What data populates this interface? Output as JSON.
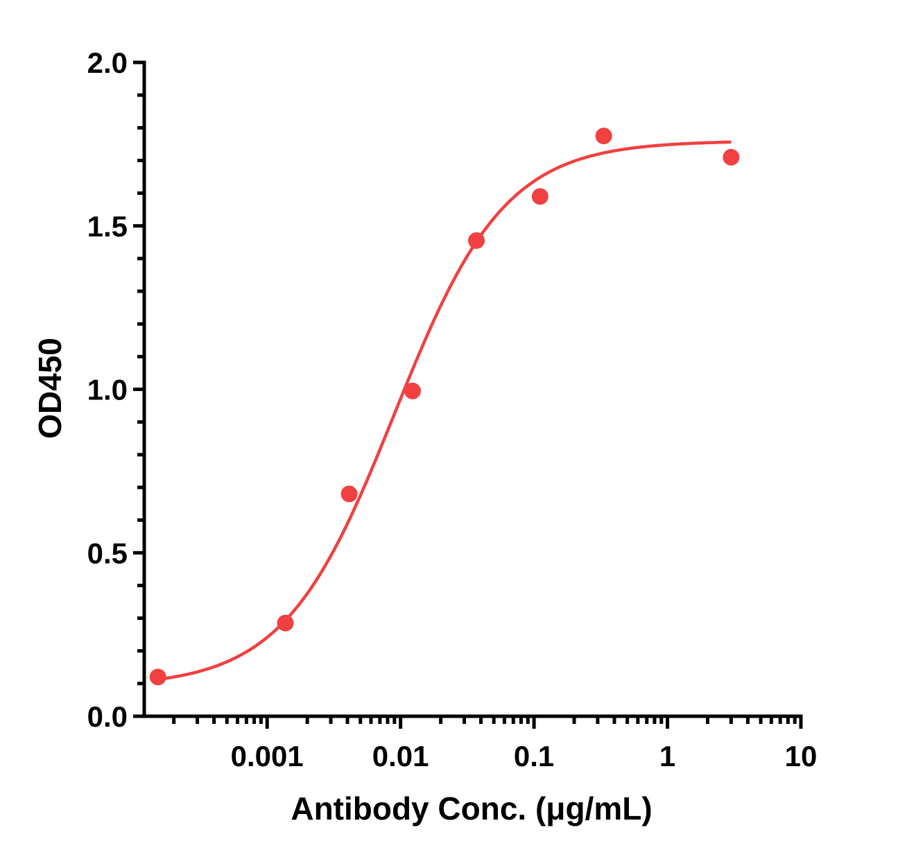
{
  "chart_data": {
    "type": "scatter",
    "xlabel": "Antibody Conc. (μg/mL)",
    "ylabel": "OD450",
    "xscale": "log",
    "xlim": [
      0.00012,
      10
    ],
    "ylim": [
      0,
      2.0
    ],
    "x_tick_labels": [
      "0.001",
      "0.01",
      "0.1",
      "1",
      "10"
    ],
    "x_tick_values": [
      0.001,
      0.01,
      0.1,
      1,
      10
    ],
    "y_tick_labels": [
      "0.0",
      "0.5",
      "1.0",
      "1.5",
      "2.0"
    ],
    "y_tick_values": [
      0,
      0.5,
      1.0,
      1.5,
      2.0
    ],
    "grid": false,
    "legend": "none",
    "color": "#f04040",
    "series": [
      {
        "x": [
          0.000152,
          0.00137,
          0.00412,
          0.0123,
          0.037,
          0.111,
          0.333,
          3.0
        ],
        "y": [
          0.12,
          0.285,
          0.68,
          0.995,
          1.455,
          1.59,
          1.775,
          1.71
        ]
      }
    ],
    "fit_curve": {
      "type": "4PL",
      "bottom": 0.09,
      "top": 1.76,
      "ec50": 0.009,
      "hill": 1.05,
      "x_range": [
        0.000152,
        3.0
      ]
    }
  }
}
